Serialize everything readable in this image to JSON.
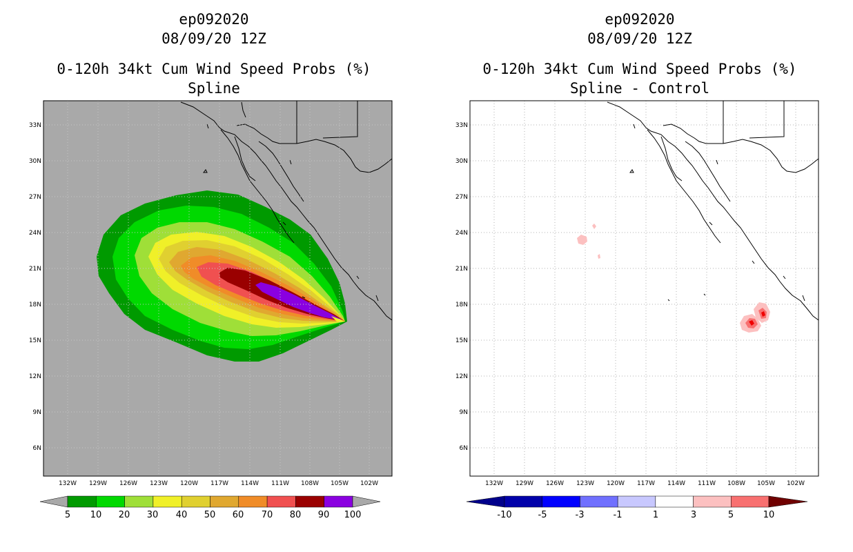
{
  "panels": [
    {
      "title": {
        "line1": "ep092020",
        "line2": "08/09/20 12Z",
        "line3": "0-120h 34kt Cum Wind Speed Probs (%)",
        "line4": "Spline"
      },
      "background": "#a9a9a9",
      "lat_ticks": [
        "33N",
        "30N",
        "27N",
        "24N",
        "21N",
        "18N",
        "15N",
        "12N",
        "9N",
        "6N"
      ],
      "lon_ticks": [
        "132W",
        "129W",
        "126W",
        "123W",
        "120W",
        "117W",
        "114W",
        "111W",
        "108W",
        "105W",
        "102W"
      ],
      "colorbar": {
        "labels": [
          "5",
          "10",
          "20",
          "30",
          "40",
          "50",
          "60",
          "70",
          "80",
          "90",
          "100"
        ],
        "colors": [
          "#009a00",
          "#00d900",
          "#9fdf38",
          "#f0f028",
          "#e0d030",
          "#e0a830",
          "#f08c28",
          "#f05050",
          "#9a0000",
          "#8a00e0"
        ],
        "end_color": "#a9a9a9"
      }
    },
    {
      "title": {
        "line1": "ep092020",
        "line2": "08/09/20 12Z",
        "line3": "0-120h 34kt Cum Wind Speed Probs (%)",
        "line4": "Spline - Control"
      },
      "background": "#ffffff",
      "lat_ticks": [
        "33N",
        "30N",
        "27N",
        "24N",
        "21N",
        "18N",
        "15N",
        "12N",
        "9N",
        "6N"
      ],
      "lon_ticks": [
        "132W",
        "129W",
        "126W",
        "123W",
        "120W",
        "117W",
        "114W",
        "111W",
        "108W",
        "105W",
        "102W"
      ],
      "colorbar": {
        "labels": [
          "-10",
          "-5",
          "-3",
          "-1",
          "1",
          "3",
          "5",
          "10"
        ],
        "colors": [
          "#0000aa",
          "#0000ff",
          "#7070ff",
          "#c8c8ff",
          "#ffffff",
          "#fcc0c0",
          "#f87070",
          "#f00000"
        ],
        "low_end": "#00008b",
        "high_end": "#700000"
      }
    }
  ]
}
